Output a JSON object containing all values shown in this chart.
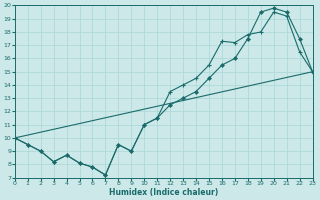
{
  "xlabel": "Humidex (Indice chaleur)",
  "background_color": "#cce8e8",
  "line_color": "#1a6b6b",
  "grid_color": "#a8d8d8",
  "xlim": [
    0,
    23
  ],
  "ylim": [
    7,
    20
  ],
  "xticks": [
    0,
    1,
    2,
    3,
    4,
    5,
    6,
    7,
    8,
    9,
    10,
    11,
    12,
    13,
    14,
    15,
    16,
    17,
    18,
    19,
    20,
    21,
    22,
    23
  ],
  "yticks": [
    7,
    8,
    9,
    10,
    11,
    12,
    13,
    14,
    15,
    16,
    17,
    18,
    19,
    20
  ],
  "line1_x": [
    0,
    1,
    2,
    3,
    4,
    5,
    6,
    7,
    8,
    9,
    10,
    11,
    12,
    13,
    14,
    15,
    16,
    17,
    18,
    19,
    20,
    21,
    22,
    23
  ],
  "line1_y": [
    10.0,
    9.5,
    9.0,
    8.2,
    8.7,
    8.1,
    7.8,
    7.2,
    9.5,
    9.0,
    11.0,
    11.5,
    13.5,
    14.0,
    14.5,
    15.5,
    17.3,
    17.2,
    17.8,
    18.0,
    19.5,
    19.2,
    16.5,
    15.0
  ],
  "line2_x": [
    0,
    1,
    2,
    3,
    4,
    5,
    6,
    7,
    8,
    9,
    10,
    11,
    12,
    13,
    14,
    15,
    16,
    17,
    18,
    19,
    20,
    21,
    22,
    23
  ],
  "line2_y": [
    10.0,
    9.5,
    9.0,
    8.2,
    8.7,
    8.1,
    7.8,
    7.2,
    9.5,
    9.0,
    11.0,
    11.5,
    12.5,
    13.0,
    13.5,
    14.5,
    15.5,
    16.0,
    17.5,
    19.5,
    19.8,
    19.5,
    17.5,
    15.0
  ],
  "line3_x": [
    0,
    23
  ],
  "line3_y": [
    10.0,
    15.0
  ]
}
